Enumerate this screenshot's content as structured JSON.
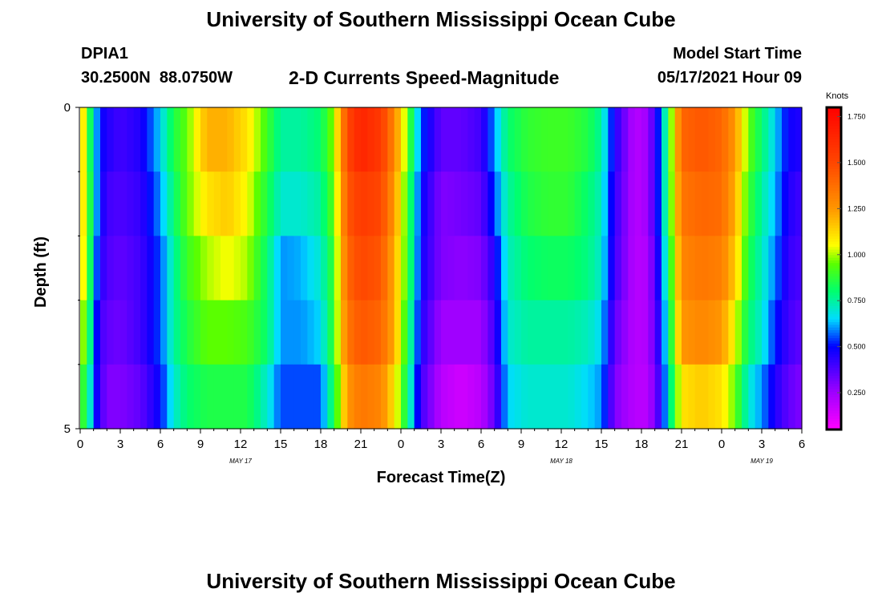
{
  "page": {
    "title_top": "University of Southern Mississippi Ocean Cube",
    "title_bottom": "University of Southern Mississippi Ocean Cube",
    "station_id": "DPIA1",
    "coordinates": "30.2500N  88.0750W",
    "model_start_label": "Model Start Time",
    "model_start_value": "05/17/2021 Hour 09"
  },
  "chart_data": {
    "type": "heatmap",
    "subtitle": "2-D Currents Speed-Magnitude",
    "xlabel": "Forecast Time(Z)",
    "ylabel": "Depth (ft)",
    "x_tick_labels": [
      "0",
      "3",
      "6",
      "9",
      "12",
      "15",
      "18",
      "21",
      "0",
      "3",
      "6",
      "9",
      "12",
      "15",
      "18",
      "21",
      "0",
      "3",
      "6"
    ],
    "date_labels": [
      {
        "label": "MAY 17",
        "hour": 12
      },
      {
        "label": "MAY 18",
        "hour": 36
      },
      {
        "label": "MAY 19",
        "hour": 51
      }
    ],
    "x_range_hours": [
      0,
      54
    ],
    "y_tick_labels": [
      "0",
      "5"
    ],
    "y_range_ft": [
      0,
      5
    ],
    "colorbar": {
      "unit": "Knots",
      "tick_labels": [
        "1.750",
        "1.500",
        "1.250",
        "1.000",
        "0.750",
        "0.500",
        "0.250"
      ],
      "tick_values": [
        1.75,
        1.5,
        1.25,
        1.0,
        0.75,
        0.5,
        0.25
      ],
      "range": [
        0.05,
        1.8
      ]
    },
    "field": {
      "time_step_hours": 0.5,
      "depth_layers": 5,
      "keyframes_hours": [
        0,
        0.5,
        1,
        1.5,
        2,
        3,
        4.5,
        6,
        7,
        8,
        9.5,
        11,
        12.5,
        14,
        15,
        16.5,
        18,
        19,
        20,
        21,
        22.5,
        23.5,
        24.5,
        25.5,
        27,
        28.5,
        30,
        31,
        32,
        33.5,
        35,
        36.5,
        38,
        39,
        40,
        41.5,
        42.5,
        43.5,
        44,
        45,
        46.5,
        48,
        49,
        50,
        51,
        52,
        53,
        54
      ],
      "keyframe_speeds": [
        [
          1.2,
          1.15,
          1.1,
          1.0,
          0.9
        ],
        [
          0.95,
          1.0,
          1.0,
          0.95,
          0.85
        ],
        [
          0.7,
          0.7,
          0.65,
          0.6,
          0.55
        ],
        [
          0.5,
          0.5,
          0.45,
          0.4,
          0.4
        ],
        [
          0.45,
          0.4,
          0.38,
          0.35,
          0.3
        ],
        [
          0.4,
          0.38,
          0.35,
          0.33,
          0.3
        ],
        [
          0.45,
          0.42,
          0.4,
          0.4,
          0.35
        ],
        [
          0.65,
          0.6,
          0.55,
          0.55,
          0.5
        ],
        [
          0.85,
          0.8,
          0.75,
          0.75,
          0.7
        ],
        [
          0.95,
          0.95,
          0.9,
          0.85,
          0.8
        ],
        [
          1.2,
          1.1,
          1.0,
          0.95,
          0.85
        ],
        [
          1.2,
          1.15,
          1.05,
          0.95,
          0.85
        ],
        [
          1.1,
          1.05,
          1.0,
          0.92,
          0.85
        ],
        [
          0.9,
          0.85,
          0.8,
          0.8,
          0.7
        ],
        [
          0.75,
          0.7,
          0.6,
          0.6,
          0.55
        ],
        [
          0.75,
          0.7,
          0.62,
          0.6,
          0.55
        ],
        [
          0.8,
          0.75,
          0.7,
          0.65,
          0.55
        ],
        [
          1.0,
          0.95,
          0.9,
          0.9,
          0.85
        ],
        [
          1.5,
          1.45,
          1.4,
          1.35,
          1.25
        ],
        [
          1.65,
          1.55,
          1.5,
          1.45,
          1.35
        ],
        [
          1.55,
          1.5,
          1.45,
          1.4,
          1.3
        ],
        [
          1.3,
          1.25,
          1.2,
          1.2,
          1.1
        ],
        [
          0.95,
          0.9,
          0.9,
          0.85,
          0.8
        ],
        [
          0.55,
          0.5,
          0.48,
          0.45,
          0.4
        ],
        [
          0.35,
          0.3,
          0.3,
          0.25,
          0.2
        ],
        [
          0.35,
          0.32,
          0.28,
          0.25,
          0.15
        ],
        [
          0.4,
          0.35,
          0.3,
          0.25,
          0.2
        ],
        [
          0.6,
          0.55,
          0.45,
          0.4,
          0.35
        ],
        [
          0.8,
          0.75,
          0.72,
          0.7,
          0.65
        ],
        [
          0.88,
          0.85,
          0.8,
          0.75,
          0.7
        ],
        [
          0.9,
          0.88,
          0.82,
          0.75,
          0.7
        ],
        [
          0.9,
          0.88,
          0.82,
          0.75,
          0.7
        ],
        [
          0.85,
          0.8,
          0.78,
          0.72,
          0.65
        ],
        [
          0.75,
          0.72,
          0.7,
          0.65,
          0.6
        ],
        [
          0.45,
          0.42,
          0.4,
          0.35,
          0.3
        ],
        [
          0.2,
          0.2,
          0.2,
          0.2,
          0.2
        ],
        [
          0.25,
          0.25,
          0.22,
          0.22,
          0.2
        ],
        [
          0.6,
          0.6,
          0.55,
          0.5,
          0.45
        ],
        [
          0.85,
          0.85,
          0.8,
          0.75,
          0.7
        ],
        [
          1.4,
          1.35,
          1.3,
          1.25,
          1.1
        ],
        [
          1.45,
          1.4,
          1.35,
          1.3,
          1.15
        ],
        [
          1.4,
          1.38,
          1.32,
          1.25,
          1.1
        ],
        [
          1.25,
          1.2,
          1.15,
          1.05,
          0.95
        ],
        [
          0.95,
          0.9,
          0.85,
          0.8,
          0.7
        ],
        [
          0.8,
          0.75,
          0.72,
          0.7,
          0.6
        ],
        [
          0.65,
          0.62,
          0.58,
          0.52,
          0.45
        ],
        [
          0.48,
          0.45,
          0.42,
          0.4,
          0.35
        ],
        [
          0.45,
          0.4,
          0.38,
          0.35,
          0.3
        ]
      ]
    }
  }
}
